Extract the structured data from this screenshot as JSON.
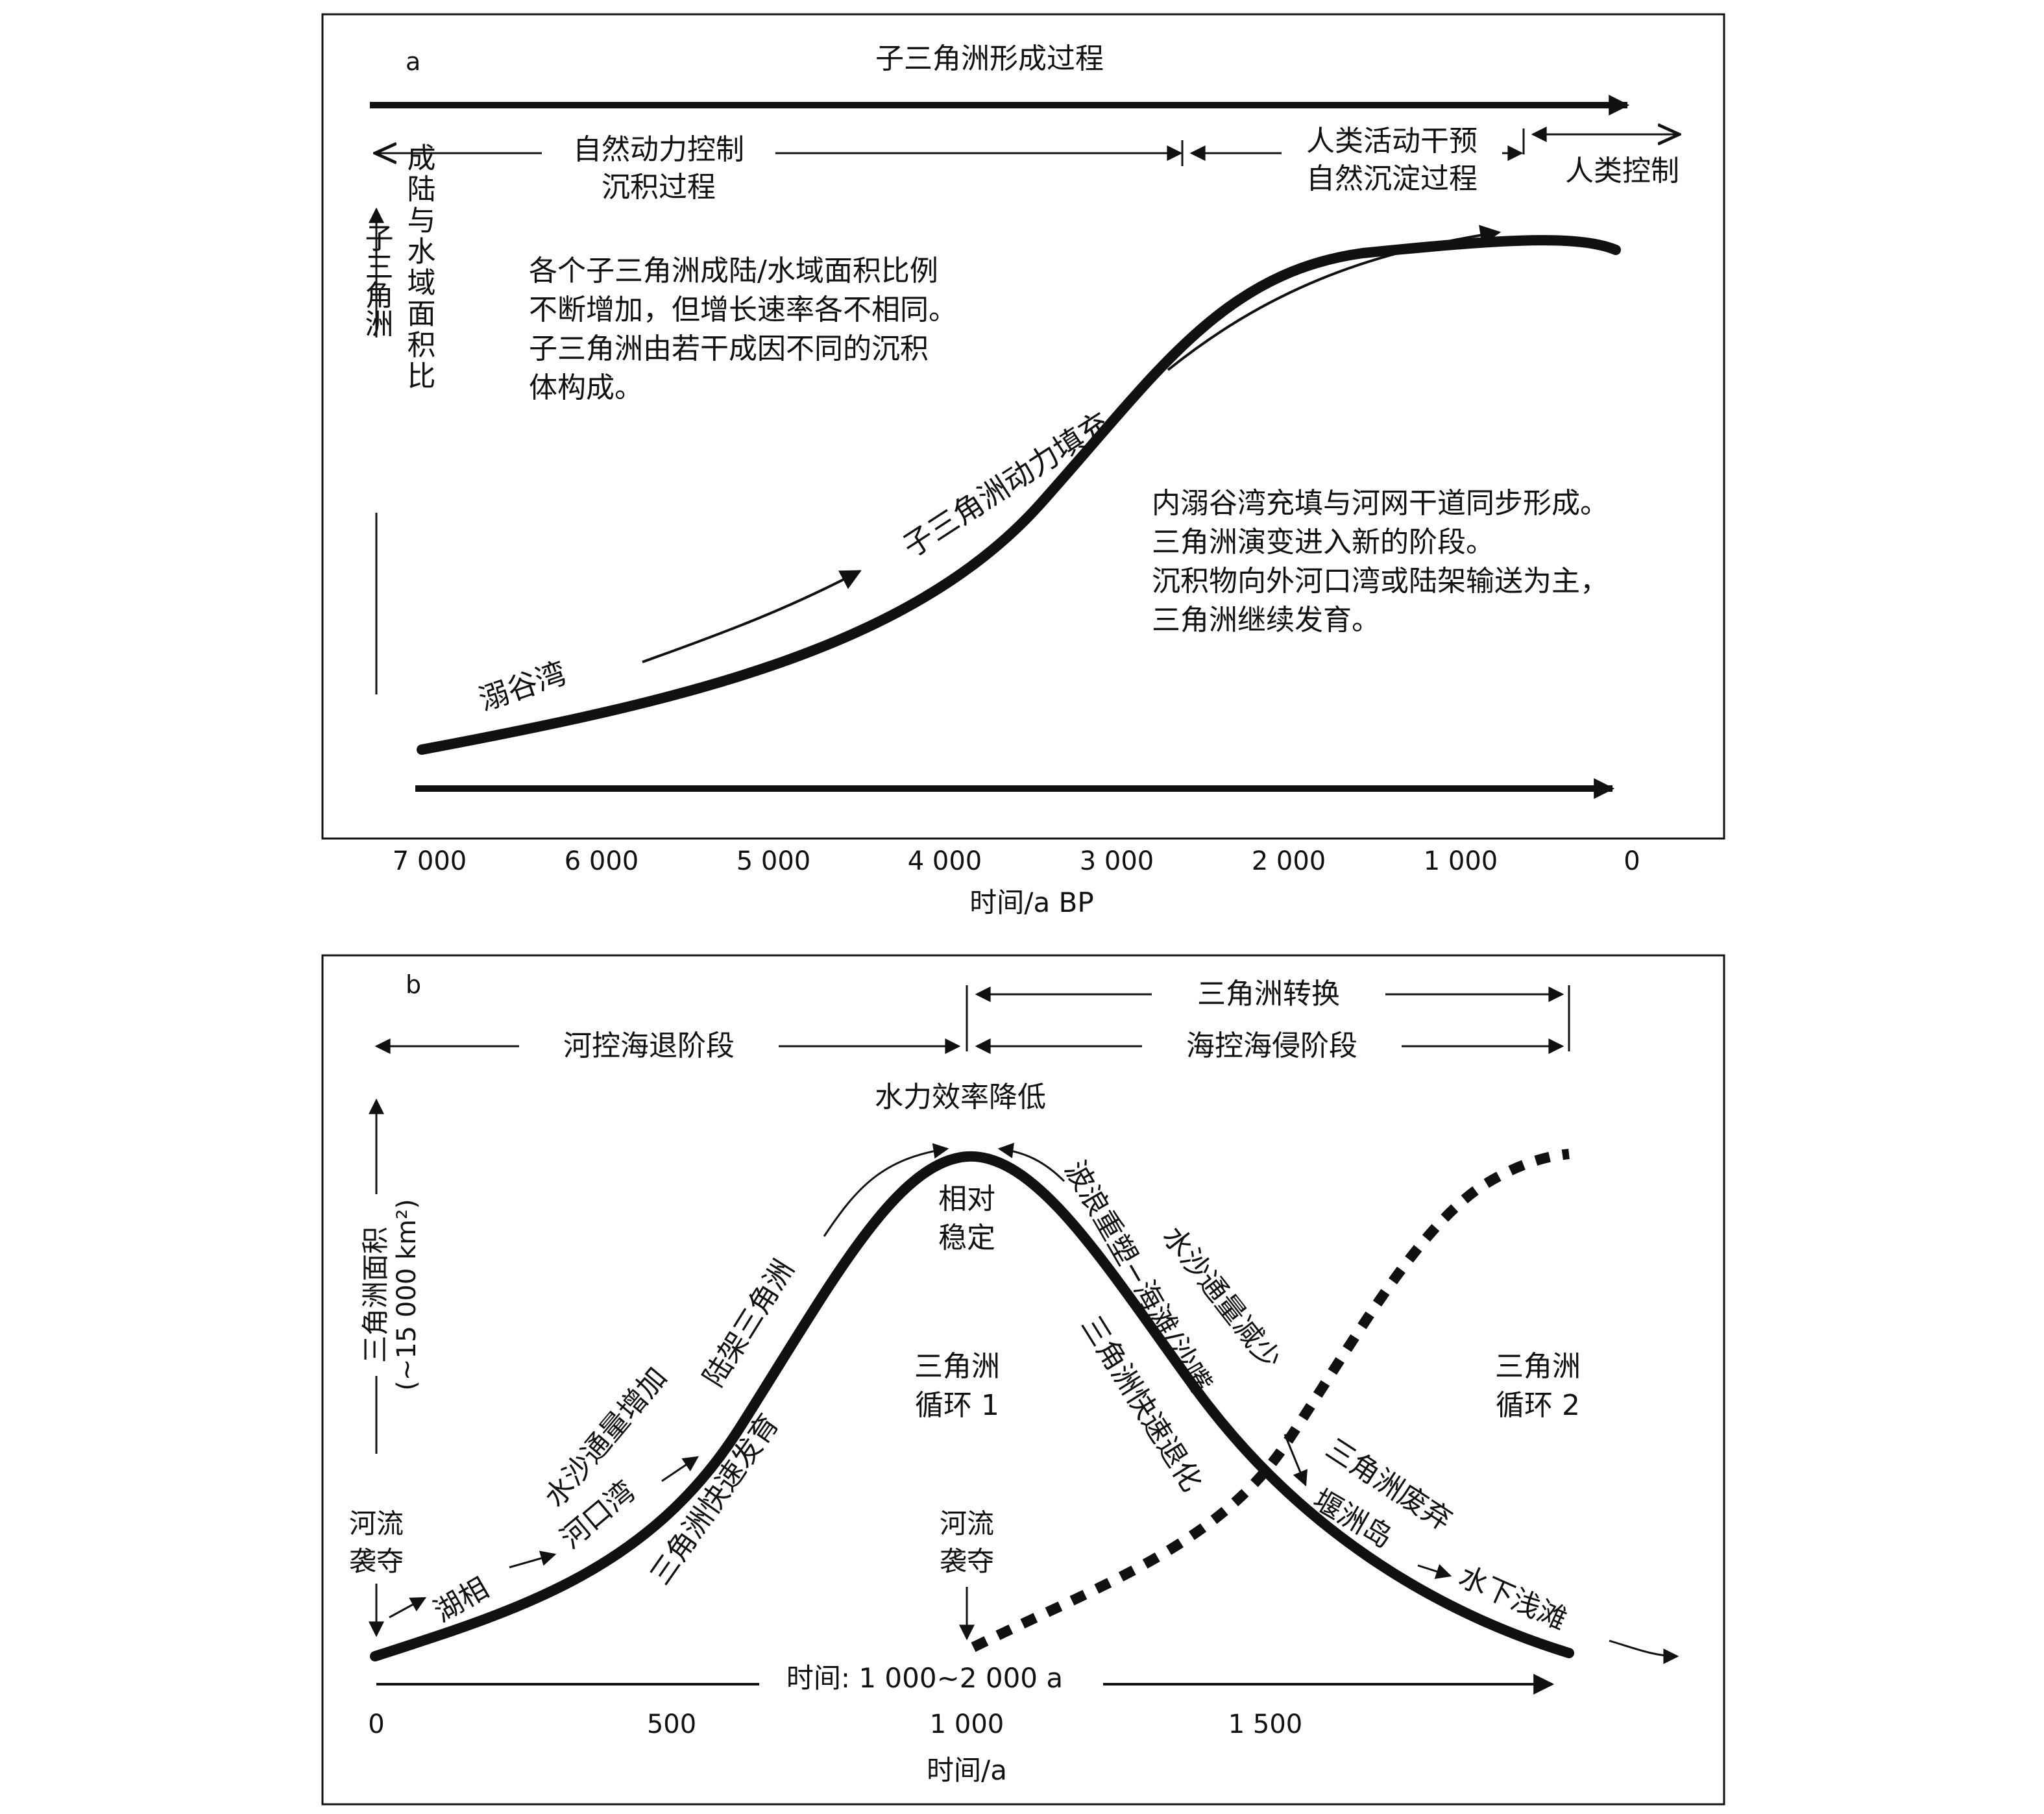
{
  "panel_a": {
    "letter": "a",
    "top_arrow_label": "子三角洲形成过程",
    "phase_natural_1": "自然动力控制",
    "phase_natural_2": "沉积过程",
    "phase_human_interference_1": "人类活动干预",
    "phase_human_interference_2": "自然沉淀过程",
    "phase_human_control": "人类控制",
    "y_axis_label_col1": "子三角洲",
    "y_axis_label_col2": "成陆与水域面积比",
    "note_top": [
      "各个子三角洲成陆/水域面积比例",
      "不断增加，但增长速率各不相同。",
      "子三角洲由若干成因不同的沉积",
      "体构成。"
    ],
    "note_right": [
      "内溺谷湾充填与河网干道同步形成。",
      "三角洲演变进入新的阶段。",
      "沉积物向外河口湾或陆架输送为主，",
      "三角洲继续发育。"
    ],
    "curve_label_start": "溺谷湾",
    "curve_label_mid": "子三角洲动力填充",
    "x_ticks": [
      "7 000",
      "6 000",
      "5 000",
      "4 000",
      "3 000",
      "2 000",
      "1 000",
      "0"
    ],
    "x_axis_label": "时间/a BP"
  },
  "panel_b": {
    "letter": "b",
    "phase_transition": "三角洲转换",
    "phase_regression": "河控海退阶段",
    "phase_transgression": "海控海侵阶段",
    "peak_label": "水力效率降低",
    "peak_inner_1": "相对",
    "peak_inner_2": "稳定",
    "y_axis_label_1": "三角洲面积",
    "y_axis_label_2": "(~15 000 km²)",
    "capture_left_1": "河流",
    "capture_left_2": "袭夺",
    "capture_mid_1": "河流",
    "capture_mid_2": "袭夺",
    "stage_lake": "湖相",
    "stage_estuary": "河口湾",
    "stage_shelf": "陆架三角洲",
    "sediment_increase": "水沙通量增加",
    "rapid_growth": "三角洲快速发育",
    "cycle1_1": "三角洲",
    "cycle1_2": "循环 1",
    "cycle2_1": "三角洲",
    "cycle2_2": "循环 2",
    "wave_reshape": "波浪重塑−海滩/沙嘴",
    "sediment_decrease": "水沙通量减少",
    "rapid_retreat": "三角洲快速退化",
    "abandon": "三角洲废弃",
    "barrier_island": "堰洲岛",
    "shoal": "水下浅滩",
    "time_arrow_label": "时间: 1 000~2 000 a",
    "x_ticks": [
      "0",
      "500",
      "1 000",
      "1 500"
    ],
    "x_axis_label": "时间/a"
  }
}
